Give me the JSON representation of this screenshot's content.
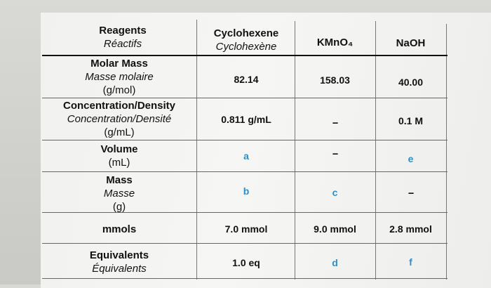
{
  "headers": {
    "reagents_en": "Reagents",
    "reagents_fr": "Réactifs",
    "cyclohexene_en": "Cyclohexene",
    "cyclohexene_fr": "Cyclohexène",
    "kmno4": "KMnO₄",
    "naoh": "NaOH"
  },
  "rows": {
    "molar_mass": {
      "en": "Molar Mass",
      "fr": "Masse molaire",
      "unit": "(g/mol)",
      "cyclohexene": "82.14",
      "kmno4": "158.03",
      "naoh": "40.00"
    },
    "concentration": {
      "en": "Concentration/Density",
      "fr": "Concentration/Densité",
      "unit": "(g/mL)",
      "cyclohexene": "0.811 g/mL",
      "kmno4": "--",
      "naoh": "0.1 M"
    },
    "volume": {
      "en": "Volume",
      "unit": "(mL)",
      "cyclohexene": "a",
      "kmno4": "--",
      "naoh": "e"
    },
    "mass": {
      "en": "Mass",
      "fr": "Masse",
      "unit": "(g)",
      "cyclohexene": "b",
      "kmno4": "c",
      "naoh": "--"
    },
    "mmols": {
      "en": "mmols",
      "cyclohexene": "7.0 mmol",
      "kmno4": "9.0 mmol",
      "naoh": "2.8 mmol"
    },
    "equivalents": {
      "en": "Equivalents",
      "fr": "Équivalents",
      "cyclohexene": "1.0 eq",
      "kmno4": "d",
      "naoh": "f"
    }
  },
  "colors": {
    "variable": "#2a8fd0",
    "text": "#111111"
  }
}
